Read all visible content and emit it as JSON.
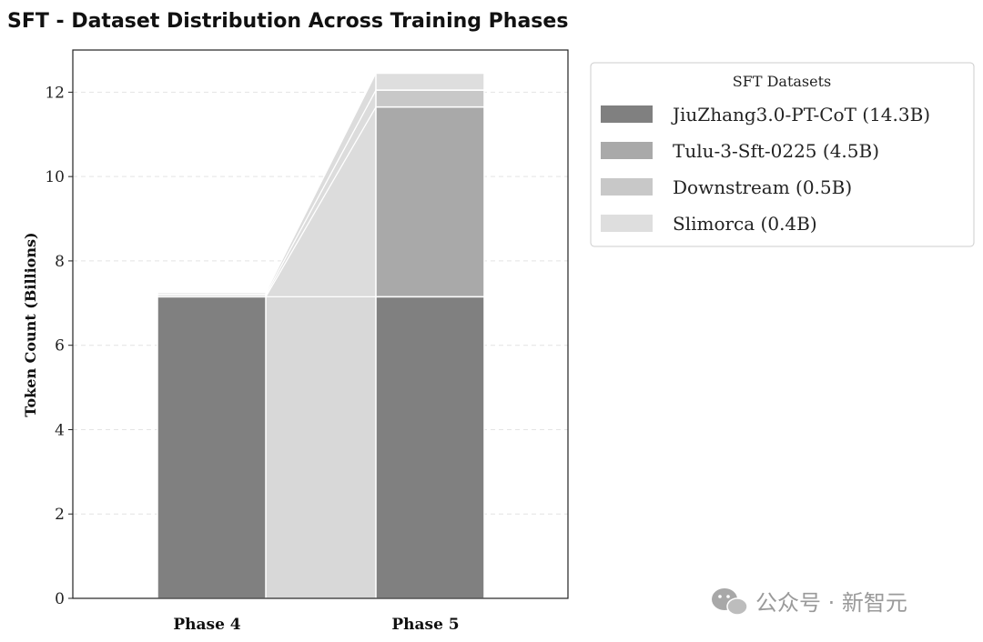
{
  "chart_data": {
    "type": "bar",
    "subtype": "stacked",
    "title": "SFT - Dataset Distribution Across Training Phases",
    "xlabel": "",
    "ylabel": "Token Count (Billions)",
    "ylim": [
      0,
      13
    ],
    "yticks": [
      0,
      2,
      4,
      6,
      8,
      10,
      12
    ],
    "grid": "horizontal-dashed",
    "categories": [
      "Phase 4",
      "Phase 5"
    ],
    "series": [
      {
        "name": "JiuZhang3.0-PT-CoT (14.3B)",
        "color": "#808080",
        "values": [
          7.15,
          7.15
        ]
      },
      {
        "name": "Tulu-3-Sft-0225 (4.5B)",
        "color": "#a9a9a9",
        "values": [
          0,
          4.5
        ]
      },
      {
        "name": "Downstream (0.5B)",
        "color": "#c8c8c8",
        "values": [
          0.05,
          0.4
        ]
      },
      {
        "name": "Slimorca (0.4B)",
        "color": "#dedede",
        "values": [
          0.05,
          0.4
        ]
      }
    ],
    "legend": {
      "title": "SFT Datasets",
      "position": "right"
    }
  },
  "watermark": "公众号 · 新智元"
}
